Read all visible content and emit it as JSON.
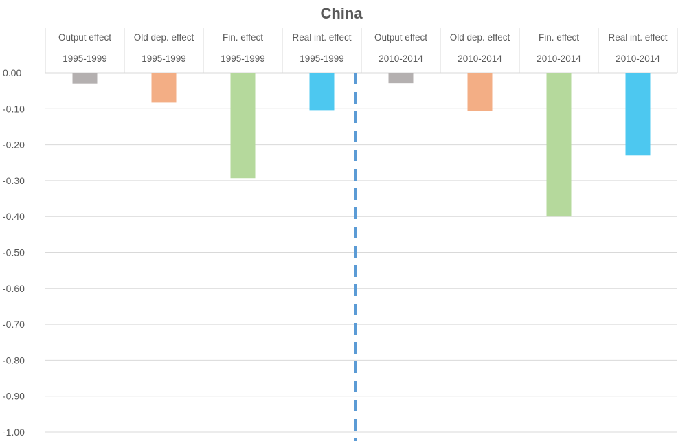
{
  "chart_data": {
    "type": "bar",
    "title": "China",
    "xlabel": "",
    "ylabel": "",
    "ylim": [
      -1.0,
      0.0
    ],
    "yticks": [
      "0.00",
      "-0.10",
      "-0.20",
      "-0.30",
      "-0.40",
      "-0.50",
      "-0.60",
      "-0.70",
      "-0.80",
      "-0.90",
      "-1.00"
    ],
    "ytick_values": [
      0.0,
      -0.1,
      -0.2,
      -0.3,
      -0.4,
      -0.5,
      -0.6,
      -0.7,
      -0.8,
      -0.9,
      -1.0
    ],
    "grid": true,
    "categories": [
      {
        "label": "Output effect",
        "period": "1995-1999"
      },
      {
        "label": "Old dep. effect",
        "period": "1995-1999"
      },
      {
        "label": "Fin. effect",
        "period": "1995-1999"
      },
      {
        "label": "Real int. effect",
        "period": "1995-1999"
      },
      {
        "label": "Output effect",
        "period": "2010-2014"
      },
      {
        "label": "Old dep. effect",
        "period": "2010-2014"
      },
      {
        "label": "Fin. effect",
        "period": "2010-2014"
      },
      {
        "label": "Real int. effect",
        "period": "2010-2014"
      }
    ],
    "values": [
      -0.03,
      -0.083,
      -0.293,
      -0.104,
      -0.029,
      -0.106,
      -0.4,
      -0.23
    ],
    "colors": [
      "#b4b0b0",
      "#f3ae85",
      "#b5d99c",
      "#4dc8f0",
      "#b4b0b0",
      "#f3ae85",
      "#b5d99c",
      "#4dc8f0"
    ],
    "separator": {
      "style": "dashed",
      "color": "#5b9bd5",
      "between_categories": [
        3,
        4
      ]
    }
  }
}
